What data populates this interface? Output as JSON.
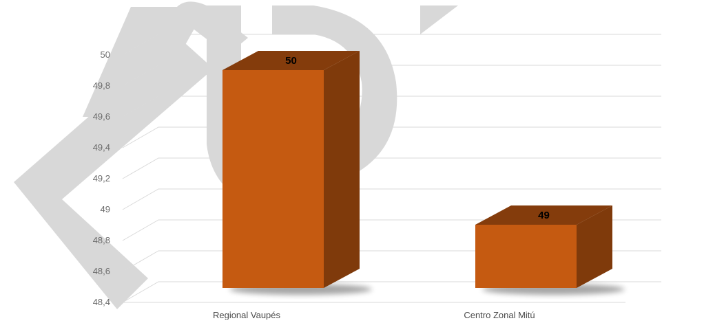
{
  "chart_data": {
    "type": "bar",
    "categories": [
      "Regional Vaupés",
      "Centro Zonal Mitú"
    ],
    "values": [
      50,
      49
    ],
    "data_labels": [
      "50",
      "49"
    ],
    "yticks": [
      48.4,
      48.6,
      48.8,
      49,
      49.2,
      49.4,
      49.6,
      49.8,
      50
    ],
    "ytick_labels": [
      "48,4",
      "48,6",
      "48,8",
      "49",
      "49,2",
      "49,4",
      "49,6",
      "49,8",
      "50"
    ],
    "ylim": [
      48.4,
      50.2
    ],
    "title": "",
    "xlabel": "",
    "ylabel": "",
    "grid": true,
    "style": "3d-column",
    "legend": "none",
    "colors": {
      "bar_front": "#c55a11",
      "bar_top": "#843c0c",
      "bar_side": "#7f3a0b",
      "gridline": "#d9d9d9",
      "watermark": "#d0d0d0"
    }
  }
}
